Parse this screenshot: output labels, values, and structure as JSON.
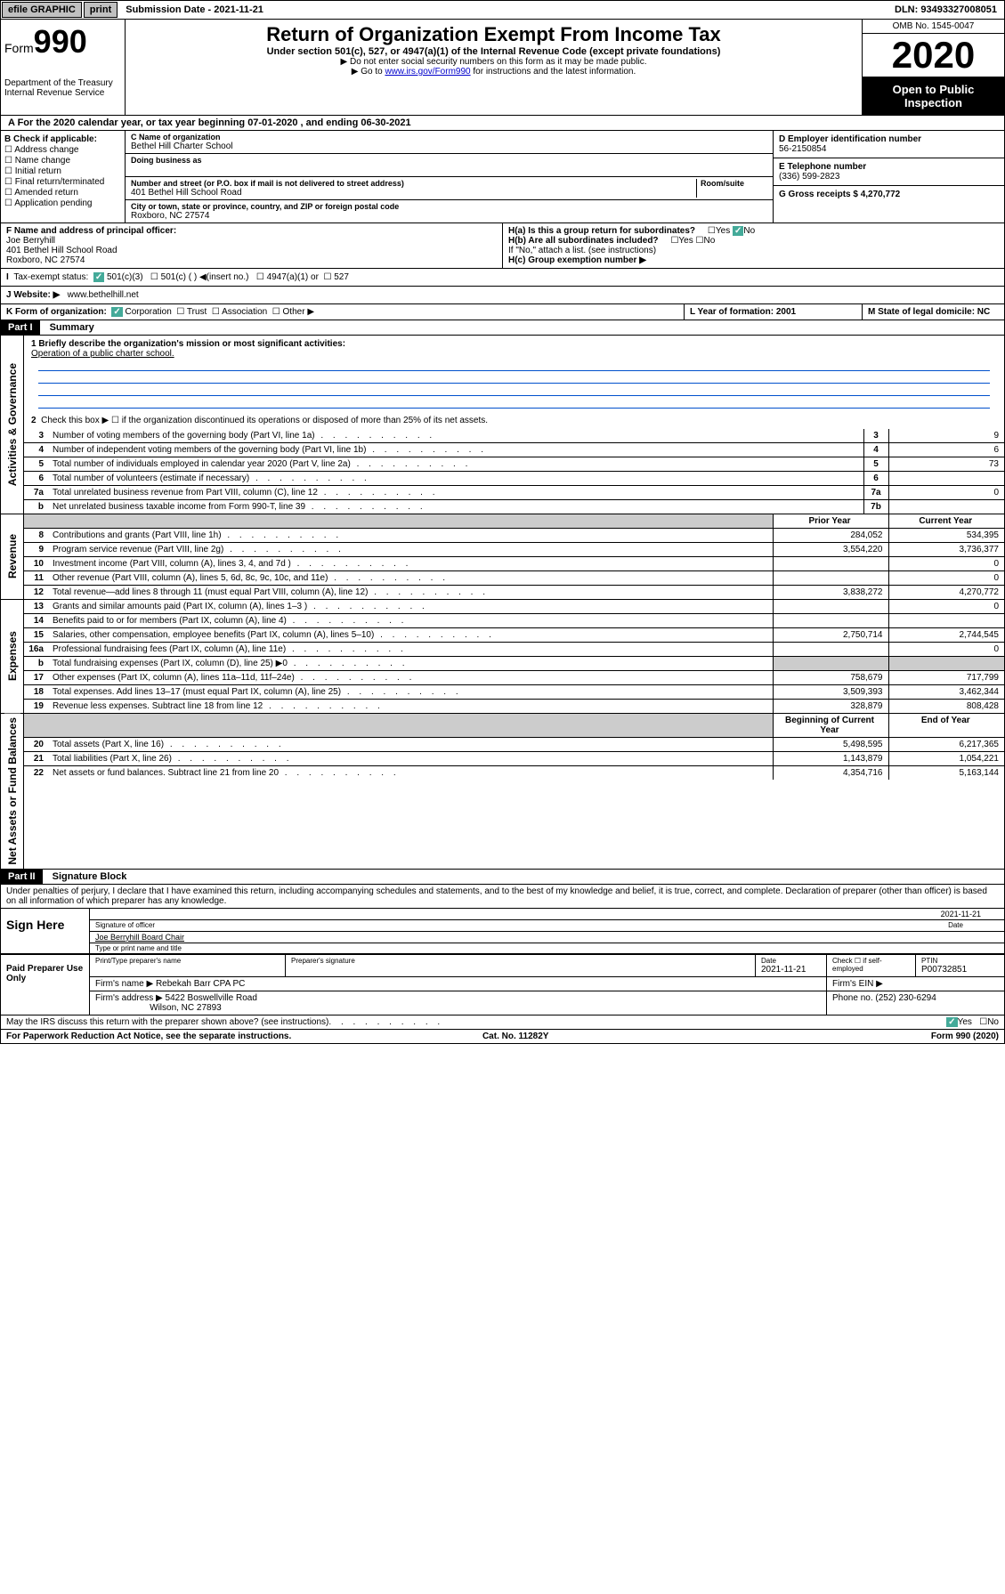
{
  "topbar": {
    "efile": "efile GRAPHIC",
    "print": "print",
    "submission_label": "Submission Date - 2021-11-21",
    "dln": "DLN: 93493327008051"
  },
  "header": {
    "form_prefix": "Form",
    "form_number": "990",
    "dept": "Department of the Treasury",
    "irs": "Internal Revenue Service",
    "title": "Return of Organization Exempt From Income Tax",
    "subtitle": "Under section 501(c), 527, or 4947(a)(1) of the Internal Revenue Code (except private foundations)",
    "note1": "▶ Do not enter social security numbers on this form as it may be made public.",
    "note2_prefix": "▶ Go to ",
    "note2_link": "www.irs.gov/Form990",
    "note2_suffix": " for instructions and the latest information.",
    "omb": "OMB No. 1545-0047",
    "year": "2020",
    "inspection": "Open to Public Inspection"
  },
  "sectionA": {
    "line_a": "A For the 2020 calendar year, or tax year beginning 07-01-2020     , and ending 06-30-2021",
    "b_label": "B Check if applicable:",
    "b_opts": [
      "Address change",
      "Name change",
      "Initial return",
      "Final return/terminated",
      "Amended return",
      "Application pending"
    ],
    "c_name_label": "C Name of organization",
    "org_name": "Bethel Hill Charter School",
    "dba_label": "Doing business as",
    "addr_label": "Number and street (or P.O. box if mail is not delivered to street address)",
    "room_label": "Room/suite",
    "addr": "401 Bethel Hill School Road",
    "city_label": "City or town, state or province, country, and ZIP or foreign postal code",
    "city": "Roxboro, NC  27574",
    "d_label": "D Employer identification number",
    "ein": "56-2150854",
    "e_label": "E Telephone number",
    "phone": "(336) 599-2823",
    "g_label": "G Gross receipts $ 4,270,772",
    "f_label": "F  Name and address of principal officer:",
    "officer_name": "Joe Berryhill",
    "officer_addr1": "401 Bethel Hill School Road",
    "officer_addr2": "Roxboro, NC  27574",
    "ha_label": "H(a)  Is this a group return for subordinates?",
    "hb_label": "H(b)  Are all subordinates included?",
    "hb_note": "If \"No,\" attach a list. (see instructions)",
    "hc_label": "H(c)  Group exemption number ▶",
    "yes": "Yes",
    "no": "No",
    "tax_status_label": "Tax-exempt status:",
    "status_501c3": "501(c)(3)",
    "status_501c": "501(c) (  ) ◀(insert no.)",
    "status_4947": "4947(a)(1) or",
    "status_527": "527",
    "website_label": "J  Website: ▶",
    "website": "www.bethelhill.net",
    "k_label": "K Form of organization:",
    "k_corp": "Corporation",
    "k_trust": "Trust",
    "k_assoc": "Association",
    "k_other": "Other ▶",
    "l_label": "L Year of formation: 2001",
    "m_label": "M State of legal domicile: NC"
  },
  "partI": {
    "header": "Part I",
    "title": "Summary",
    "mission_label": "1  Briefly describe the organization's mission or most significant activities:",
    "mission": "Operation of a public charter school.",
    "line2": "Check this box ▶ ☐  if the organization discontinued its operations or disposed of more than 25% of its net assets.",
    "prior_year": "Prior Year",
    "current_year": "Current Year",
    "begin_year": "Beginning of Current Year",
    "end_year": "End of Year",
    "side_gov": "Activities & Governance",
    "side_rev": "Revenue",
    "side_exp": "Expenses",
    "side_net": "Net Assets or Fund Balances"
  },
  "lines_gov": [
    {
      "n": "3",
      "d": "Number of voting members of the governing body (Part VI, line 1a)",
      "i": "3",
      "v": "9"
    },
    {
      "n": "4",
      "d": "Number of independent voting members of the governing body (Part VI, line 1b)",
      "i": "4",
      "v": "6"
    },
    {
      "n": "5",
      "d": "Total number of individuals employed in calendar year 2020 (Part V, line 2a)",
      "i": "5",
      "v": "73"
    },
    {
      "n": "6",
      "d": "Total number of volunteers (estimate if necessary)",
      "i": "6",
      "v": ""
    },
    {
      "n": "7a",
      "d": "Total unrelated business revenue from Part VIII, column (C), line 12",
      "i": "7a",
      "v": "0"
    },
    {
      "n": "b",
      "d": "Net unrelated business taxable income from Form 990-T, line 39",
      "i": "7b",
      "v": ""
    }
  ],
  "lines_rev": [
    {
      "n": "8",
      "d": "Contributions and grants (Part VIII, line 1h)",
      "p": "284,052",
      "c": "534,395"
    },
    {
      "n": "9",
      "d": "Program service revenue (Part VIII, line 2g)",
      "p": "3,554,220",
      "c": "3,736,377"
    },
    {
      "n": "10",
      "d": "Investment income (Part VIII, column (A), lines 3, 4, and 7d )",
      "p": "",
      "c": "0"
    },
    {
      "n": "11",
      "d": "Other revenue (Part VIII, column (A), lines 5, 6d, 8c, 9c, 10c, and 11e)",
      "p": "",
      "c": "0"
    },
    {
      "n": "12",
      "d": "Total revenue—add lines 8 through 11 (must equal Part VIII, column (A), line 12)",
      "p": "3,838,272",
      "c": "4,270,772"
    }
  ],
  "lines_exp": [
    {
      "n": "13",
      "d": "Grants and similar amounts paid (Part IX, column (A), lines 1–3 )",
      "p": "",
      "c": "0"
    },
    {
      "n": "14",
      "d": "Benefits paid to or for members (Part IX, column (A), line 4)",
      "p": "",
      "c": ""
    },
    {
      "n": "15",
      "d": "Salaries, other compensation, employee benefits (Part IX, column (A), lines 5–10)",
      "p": "2,750,714",
      "c": "2,744,545"
    },
    {
      "n": "16a",
      "d": "Professional fundraising fees (Part IX, column (A), line 11e)",
      "p": "",
      "c": "0"
    },
    {
      "n": "b",
      "d": "Total fundraising expenses (Part IX, column (D), line 25) ▶0",
      "p": "shaded",
      "c": "shaded"
    },
    {
      "n": "17",
      "d": "Other expenses (Part IX, column (A), lines 11a–11d, 11f–24e)",
      "p": "758,679",
      "c": "717,799"
    },
    {
      "n": "18",
      "d": "Total expenses. Add lines 13–17 (must equal Part IX, column (A), line 25)",
      "p": "3,509,393",
      "c": "3,462,344"
    },
    {
      "n": "19",
      "d": "Revenue less expenses. Subtract line 18 from line 12",
      "p": "328,879",
      "c": "808,428"
    }
  ],
  "lines_net": [
    {
      "n": "20",
      "d": "Total assets (Part X, line 16)",
      "p": "5,498,595",
      "c": "6,217,365"
    },
    {
      "n": "21",
      "d": "Total liabilities (Part X, line 26)",
      "p": "1,143,879",
      "c": "1,054,221"
    },
    {
      "n": "22",
      "d": "Net assets or fund balances. Subtract line 21 from line 20",
      "p": "4,354,716",
      "c": "5,163,144"
    }
  ],
  "partII": {
    "header": "Part II",
    "title": "Signature Block",
    "perjury": "Under penalties of perjury, I declare that I have examined this return, including accompanying schedules and statements, and to the best of my knowledge and belief, it is true, correct, and complete. Declaration of preparer (other than officer) is based on all information of which preparer has any knowledge.",
    "sign_here": "Sign Here",
    "sig_label": "Signature of officer",
    "date": "2021-11-21",
    "date_label": "Date",
    "name_title": "Joe Berryhill Board Chair",
    "type_label": "Type or print name and title",
    "paid": "Paid Preparer Use Only",
    "prep_name_label": "Print/Type preparer's name",
    "prep_sig_label": "Preparer's signature",
    "prep_date": "2021-11-21",
    "check_self": "Check ☐ if self-employed",
    "ptin_label": "PTIN",
    "ptin": "P00732851",
    "firm_name_label": "Firm's name     ▶",
    "firm_name": "Rebekah Barr CPA PC",
    "firm_ein_label": "Firm's EIN ▶",
    "firm_addr_label": "Firm's address ▶",
    "firm_addr1": "5422 Boswellville Road",
    "firm_addr2": "Wilson, NC  27893",
    "firm_phone_label": "Phone no. (252) 230-6294",
    "discuss": "May the IRS discuss this return with the preparer shown above? (see instructions)",
    "paperwork": "For Paperwork Reduction Act Notice, see the separate instructions.",
    "cat": "Cat. No. 11282Y",
    "form_footer": "Form 990 (2020)"
  }
}
